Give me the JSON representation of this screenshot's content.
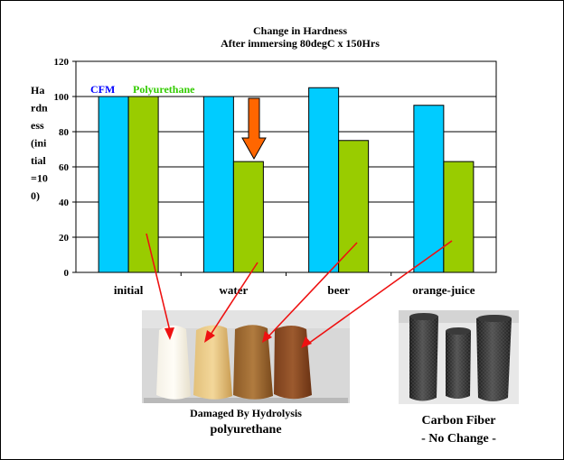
{
  "chart_data": {
    "type": "bar",
    "title": "Change in Hardness",
    "subtitle": "After immersing 80degC x 150Hrs",
    "ylabel": "Hardness (initial =100)",
    "ylabel_lines": [
      "Ha",
      "rdn",
      "ess",
      "(ini",
      "tial",
      "=10",
      "0)"
    ],
    "categories": [
      "initial",
      "water",
      "beer",
      "orange-juice"
    ],
    "ylim": [
      0,
      120
    ],
    "yticks": [
      0,
      20,
      40,
      60,
      80,
      100,
      120
    ],
    "grid": true,
    "legend": "top-left",
    "series": [
      {
        "name": "CFM",
        "values": [
          100,
          100,
          105,
          95
        ],
        "color": "#00ccff",
        "label_color": "#0000ff"
      },
      {
        "name": "Polyurethane",
        "values": [
          100,
          63,
          75,
          63
        ],
        "color": "#99cc00",
        "label_color": "#33cc00"
      }
    ],
    "highlight_arrow_color": "#ff6600",
    "pointer_color": "#ee1111"
  },
  "photos": {
    "left_caption_1": "Damaged By Hydrolysis",
    "left_caption_2": "polyurethane",
    "right_caption_1": "Carbon Fiber",
    "right_caption_2": "- No Change -"
  }
}
